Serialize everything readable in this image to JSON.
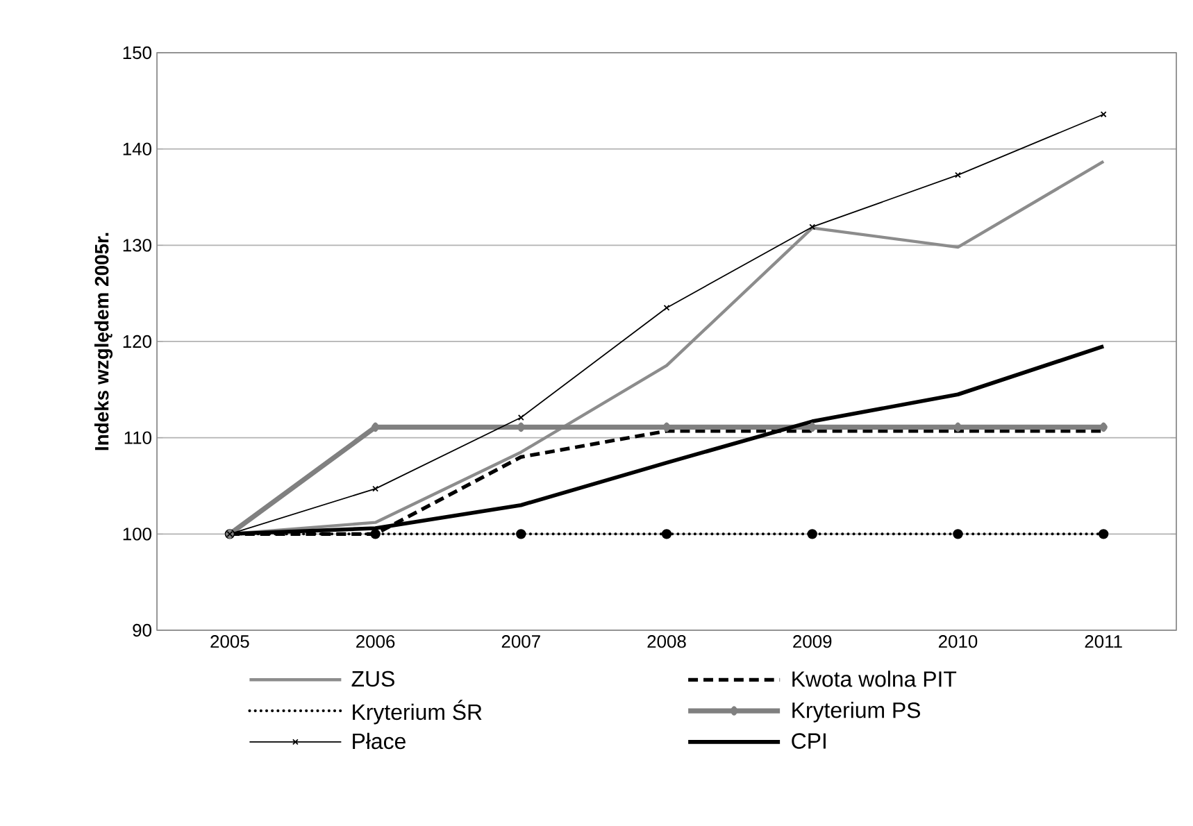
{
  "chart_data": {
    "type": "line",
    "ylabel": "Indeks względem 2005r.",
    "categories": [
      "2005",
      "2006",
      "2007",
      "2008",
      "2009",
      "2010",
      "2011"
    ],
    "series": [
      {
        "name": "ZUS",
        "color": "#8c8c8c",
        "line_style": "solid",
        "marker": "none",
        "values": [
          100,
          101.2,
          108.5,
          117.5,
          131.8,
          129.8,
          138.7
        ]
      },
      {
        "name": "Kwota wolna PIT",
        "color": "#000000",
        "line_style": "dashed",
        "marker": "none",
        "values": [
          100,
          100,
          108,
          110.7,
          110.7,
          110.7,
          110.7
        ]
      },
      {
        "name": "Kryterium ŚR",
        "color": "#000000",
        "line_style": "dotted",
        "marker": "circle",
        "values": [
          100,
          100,
          100,
          100,
          100,
          100,
          100
        ]
      },
      {
        "name": "Kryterium PS",
        "color": "#808080",
        "line_style": "solid",
        "marker": "diamond",
        "values": [
          100,
          111.1,
          111.1,
          111.1,
          111.1,
          111.1,
          111.1
        ]
      },
      {
        "name": "Płace",
        "color": "#000000",
        "line_style": "solid",
        "marker": "cross",
        "values": [
          100,
          104.7,
          112.1,
          123.5,
          131.9,
          137.3,
          143.6
        ]
      },
      {
        "name": "CPI",
        "color": "#000000",
        "line_style": "solid",
        "marker": "none",
        "values": [
          100,
          100.6,
          103,
          107.4,
          111.7,
          114.5,
          119.5
        ]
      }
    ],
    "ylim": [
      90,
      150
    ],
    "yticks": [
      90,
      100,
      110,
      120,
      130,
      140,
      150
    ],
    "grid": "y",
    "legend": "bottom left"
  }
}
